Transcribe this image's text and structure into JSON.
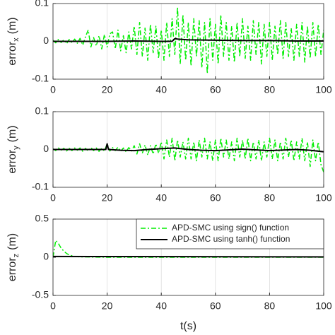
{
  "chart_data": [
    {
      "type": "line",
      "grid": "x",
      "ylabel": {
        "main": "error",
        "sub": "x",
        "unit": "(m)"
      },
      "xlim": [
        0,
        100
      ],
      "xticks": [
        0,
        20,
        40,
        60,
        80,
        100
      ],
      "ylim": [
        -0.1,
        0.1
      ],
      "yticks": [
        -0.1,
        0,
        0.1
      ],
      "series": [
        {
          "color": "#00ee00",
          "linestyle": "-.",
          "x": [
            0,
            1,
            2,
            3,
            4,
            5,
            6,
            7,
            8,
            9,
            10,
            11,
            12,
            13,
            14,
            15,
            16,
            17,
            18,
            19,
            20,
            21,
            22,
            23,
            24,
            25,
            26,
            27,
            28,
            29,
            30,
            31,
            32,
            33,
            34,
            35,
            36,
            37,
            38,
            39,
            40,
            41,
            42,
            43,
            44,
            45,
            46,
            47,
            48,
            49,
            50,
            51,
            52,
            53,
            54,
            55,
            56,
            57,
            58,
            59,
            60,
            61,
            62,
            63,
            64,
            65,
            66,
            67,
            68,
            69,
            70,
            71,
            72,
            73,
            74,
            75,
            76,
            77,
            78,
            79,
            80,
            81,
            82,
            83,
            84,
            85,
            86,
            87,
            88,
            89,
            90,
            91,
            92,
            93,
            94,
            95,
            96,
            97,
            98,
            99,
            100
          ],
          "values": [
            0.003,
            -0.004,
            0.005,
            -0.003,
            0.004,
            -0.006,
            0.005,
            -0.004,
            0.006,
            -0.005,
            0.008,
            -0.01,
            0.012,
            0.03,
            -0.015,
            0.01,
            -0.012,
            0.015,
            -0.02,
            0.018,
            -0.015,
            0.02,
            0.025,
            -0.02,
            0.03,
            -0.025,
            0.015,
            -0.03,
            0.025,
            -0.02,
            0.04,
            -0.035,
            0.05,
            -0.04,
            0.035,
            -0.05,
            0.045,
            -0.03,
            0.04,
            -0.045,
            0.03,
            -0.05,
            0.05,
            -0.04,
            0.06,
            -0.035,
            0.09,
            -0.06,
            0.07,
            -0.05,
            0.05,
            -0.065,
            0.06,
            -0.04,
            0.055,
            -0.07,
            0.05,
            -0.085,
            0.06,
            -0.05,
            0.045,
            -0.06,
            0.07,
            -0.04,
            0.05,
            -0.05,
            0.04,
            -0.055,
            0.05,
            -0.04,
            0.06,
            -0.045,
            0.04,
            -0.05,
            0.055,
            -0.035,
            0.05,
            -0.06,
            0.045,
            -0.04,
            0.05,
            -0.05,
            0.04,
            -0.035,
            0.055,
            -0.045,
            0.05,
            -0.04,
            0.035,
            -0.05,
            0.045,
            -0.04,
            0.05,
            -0.055,
            0.04,
            -0.045,
            0.05,
            -0.04,
            0.045,
            -0.035,
            0.03
          ]
        },
        {
          "color": "#000000",
          "linestyle": "-",
          "x": [
            0,
            10,
            20,
            30,
            40,
            44,
            45,
            46,
            50,
            60,
            70,
            80,
            90,
            100
          ],
          "values": [
            0,
            0,
            0,
            0.001,
            0,
            0,
            0.007,
            0.006,
            0.004,
            0.003,
            0.002,
            0.002,
            0.001,
            0.001
          ]
        }
      ]
    },
    {
      "type": "line",
      "grid": "x",
      "ylabel": {
        "main": "error",
        "sub": "y",
        "unit": "(m)"
      },
      "xlim": [
        0,
        100
      ],
      "xticks": [
        0,
        20,
        40,
        60,
        80,
        100
      ],
      "ylim": [
        -0.1,
        0.1
      ],
      "yticks": [
        -0.1,
        0,
        0.1
      ],
      "series": [
        {
          "color": "#00ee00",
          "linestyle": "-.",
          "x": [
            0,
            1,
            2,
            3,
            4,
            5,
            6,
            7,
            8,
            9,
            10,
            11,
            12,
            13,
            14,
            15,
            16,
            17,
            18,
            19,
            20,
            21,
            22,
            23,
            24,
            25,
            26,
            27,
            28,
            29,
            30,
            31,
            32,
            33,
            34,
            35,
            36,
            37,
            38,
            39,
            40,
            41,
            42,
            43,
            44,
            45,
            46,
            47,
            48,
            49,
            50,
            51,
            52,
            53,
            54,
            55,
            56,
            57,
            58,
            59,
            60,
            61,
            62,
            63,
            64,
            65,
            66,
            67,
            68,
            69,
            70,
            71,
            72,
            73,
            74,
            75,
            76,
            77,
            78,
            79,
            80,
            81,
            82,
            83,
            84,
            85,
            86,
            87,
            88,
            89,
            90,
            91,
            92,
            93,
            94,
            95,
            96,
            97,
            98,
            99,
            100
          ],
          "values": [
            0.002,
            -0.003,
            0.004,
            -0.002,
            0.003,
            -0.004,
            0.003,
            -0.003,
            0.004,
            -0.002,
            0.004,
            -0.005,
            0.003,
            -0.004,
            0.005,
            -0.003,
            0.004,
            -0.005,
            0.003,
            -0.004,
            0.015,
            -0.004,
            0.005,
            -0.003,
            0.006,
            -0.005,
            0.004,
            -0.006,
            0.005,
            -0.004,
            0.01,
            -0.012,
            0.015,
            -0.01,
            0.012,
            -0.015,
            0.01,
            -0.012,
            0.015,
            -0.01,
            0.02,
            -0.025,
            0.025,
            -0.02,
            0.03,
            -0.03,
            0.025,
            -0.02,
            0.02,
            -0.025,
            0.03,
            -0.025,
            0.02,
            -0.03,
            0.025,
            -0.02,
            0.03,
            -0.025,
            0.02,
            -0.03,
            0.025,
            -0.03,
            0.03,
            -0.02,
            0.025,
            -0.025,
            0.02,
            -0.03,
            0.03,
            -0.02,
            0.025,
            -0.025,
            0.03,
            -0.03,
            0.02,
            -0.025,
            0.025,
            -0.03,
            0.02,
            -0.02,
            0.03,
            -0.025,
            0.025,
            -0.03,
            0.02,
            -0.025,
            0.03,
            -0.02,
            0.025,
            -0.03,
            0.02,
            -0.025,
            0.03,
            -0.03,
            0.02,
            -0.045,
            0.025,
            -0.03,
            0.02,
            -0.04,
            -0.06
          ]
        },
        {
          "color": "#000000",
          "linestyle": "-",
          "x": [
            0,
            10,
            19.5,
            20,
            20.5,
            25,
            30,
            35,
            40,
            45,
            50,
            55,
            60,
            70,
            80,
            90,
            95,
            100
          ],
          "values": [
            0,
            0,
            0,
            0.015,
            0,
            -0.002,
            -0.003,
            0,
            0.002,
            0.004,
            0,
            -0.002,
            -0.003,
            0.001,
            -0.003,
            0,
            -0.002,
            -0.006
          ]
        }
      ]
    },
    {
      "type": "line",
      "grid": "x",
      "ylabel": {
        "main": "error",
        "sub": "z",
        "unit": "(m)"
      },
      "xlabel": "t(s)",
      "xlim": [
        0,
        100
      ],
      "xticks": [
        0,
        20,
        40,
        60,
        80,
        100
      ],
      "ylim": [
        -0.5,
        0.5
      ],
      "yticks": [
        -0.5,
        0,
        0.5
      ],
      "legend": "upper right",
      "series": [
        {
          "name": "APD-SMC using sign() function",
          "color": "#00ee00",
          "linestyle": "-.",
          "x": [
            0,
            1,
            2,
            3,
            4,
            5,
            6,
            7,
            8,
            10,
            20,
            40,
            60,
            80,
            100
          ],
          "values": [
            0,
            0.22,
            0.18,
            0.12,
            0.08,
            0.05,
            0.03,
            0.02,
            0.01,
            0.005,
            0,
            0,
            0,
            0,
            0
          ]
        },
        {
          "name": "APD-SMC using tanh() function",
          "color": "#000000",
          "linestyle": "-",
          "x": [
            0,
            100
          ],
          "values": [
            0.01,
            0.005
          ]
        }
      ]
    }
  ]
}
